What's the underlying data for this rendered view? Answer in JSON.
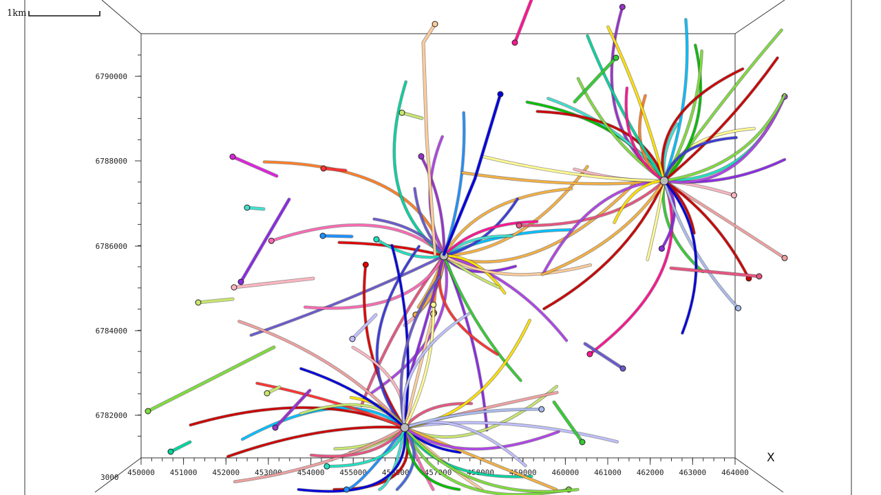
{
  "scale_bar": {
    "label": "1km"
  },
  "axis_letter": "X",
  "corner_label": "3000",
  "x_ticks": [
    "450000",
    "451000",
    "452000",
    "453000",
    "454000",
    "455000",
    "456000",
    "457000",
    "458000",
    "459000",
    "460000",
    "461000",
    "462000",
    "463000",
    "464000"
  ],
  "y_ticks": [
    "6782000",
    "6784000",
    "6786000",
    "6788000",
    "6790000"
  ],
  "colors": {
    "frame": "#333333",
    "palette": [
      "#e00000",
      "#ff3333",
      "#cc0000",
      "#ff7f27",
      "#ff9966",
      "#f5b041",
      "#ffe000",
      "#fffa90",
      "#c8e66e",
      "#7fdc3c",
      "#32cd32",
      "#00c000",
      "#00d4a0",
      "#20e0c0",
      "#40e0d0",
      "#00bfff",
      "#1e90ff",
      "#4169e1",
      "#0000dd",
      "#3b3bdb",
      "#6a5acd",
      "#8a2be2",
      "#9932cc",
      "#b044e8",
      "#ff1493",
      "#e75480",
      "#ff69b4",
      "#ffb6c1",
      "#ffcc99",
      "#aabbee",
      "#c0c0ff",
      "#f0a0a0"
    ]
  },
  "wells": {
    "hubs": [
      {
        "name": "hub-west",
        "cx": 645,
        "cy": 372,
        "count": 34,
        "seed": 3
      },
      {
        "name": "hub-east",
        "cx": 965,
        "cy": 263,
        "count": 40,
        "seed": 11
      },
      {
        "name": "hub-south",
        "cx": 588,
        "cy": 622,
        "count": 42,
        "seed": 29
      }
    ],
    "isolated": [
      {
        "color": "#ff3333",
        "pts": [
          [
            470,
            245
          ],
          [
            502,
            248
          ]
        ]
      },
      {
        "color": "#dd22dd",
        "pts": [
          [
            338,
            228
          ],
          [
            402,
            256
          ]
        ]
      },
      {
        "color": "#40e0d0",
        "pts": [
          [
            359,
            302
          ],
          [
            383,
            304
          ]
        ]
      },
      {
        "color": "#1e90ff",
        "pts": [
          [
            469,
            343
          ],
          [
            511,
            344
          ]
        ]
      },
      {
        "color": "#c8e66e",
        "pts": [
          [
            584,
            164
          ],
          [
            613,
            172
          ]
        ]
      },
      {
        "color": "#c8e66e",
        "pts": [
          [
            288,
            440
          ],
          [
            338,
            435
          ]
        ]
      },
      {
        "color": "#7fdc3c",
        "pts": [
          [
            215,
            598
          ],
          [
            300,
            555
          ],
          [
            398,
            505
          ]
        ]
      },
      {
        "color": "#00d4a0",
        "pts": [
          [
            248,
            657
          ],
          [
            276,
            643
          ]
        ]
      },
      {
        "color": "#c8e66e",
        "pts": [
          [
            388,
            572
          ],
          [
            406,
            563
          ]
        ]
      },
      {
        "color": "#9932cc",
        "pts": [
          [
            400,
            622
          ],
          [
            450,
            568
          ]
        ]
      },
      {
        "color": "#ff1493",
        "pts": [
          [
            748,
            62
          ],
          [
            772,
            0
          ]
        ]
      },
      {
        "color": "#c0c0ff",
        "pts": [
          [
            512,
            493
          ],
          [
            546,
            458
          ]
        ]
      },
      {
        "color": "#e75480",
        "pts": [
          [
            1103,
            402
          ],
          [
            975,
            390
          ]
        ]
      },
      {
        "color": "#6a5acd",
        "pts": [
          [
            905,
            536
          ],
          [
            850,
            500
          ]
        ]
      },
      {
        "color": "#32cd32",
        "pts": [
          [
            846,
            643
          ],
          [
            805,
            585
          ]
        ]
      },
      {
        "color": "#32cd32",
        "pts": [
          [
            895,
            84
          ],
          [
            835,
            148
          ]
        ]
      },
      {
        "color": "#8a2be2",
        "pts": [
          [
            350,
            410
          ],
          [
            420,
            290
          ]
        ]
      },
      {
        "color": "#ffb6c1",
        "pts": [
          [
            340,
            418
          ],
          [
            455,
            405
          ]
        ]
      },
      {
        "color": "#ffcc99",
        "pts": [
          [
            632,
            35
          ],
          [
            615,
            62
          ],
          [
            620,
            200
          ],
          [
            632,
            370
          ]
        ]
      },
      {
        "color": "#0000dd",
        "pts": [
          [
            727,
            137
          ],
          [
            690,
            260
          ],
          [
            645,
            370
          ]
        ]
      }
    ]
  }
}
